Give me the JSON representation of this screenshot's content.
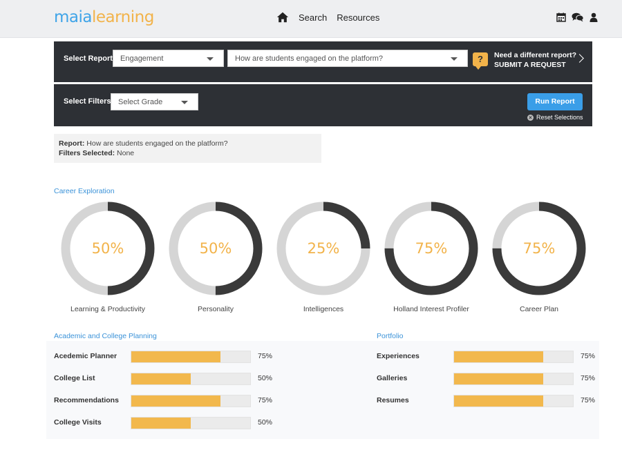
{
  "app": {
    "logo_part1": "maia",
    "logo_part2": "learning",
    "nav": [
      "Search",
      "Resources"
    ],
    "accent_color": "#3a9ee8",
    "highlight_color": "#f2b34a"
  },
  "report_bar": {
    "select_report_label": "Select Report:",
    "report_type": "Engagement",
    "report_question": "How are students engaged on the platform?",
    "request_line1": "Need a different report?",
    "request_line2": "SUBMIT A REQUEST",
    "request_icon": "?"
  },
  "filter_bar": {
    "select_filters_label": "Select Filters:",
    "grade_placeholder": "Select Grade",
    "run_button": "Run Report",
    "reset_label": "Reset Selections"
  },
  "summary": {
    "report_label": "Report:",
    "report_value": "How are students engaged on the platform?",
    "filters_label": "Filters Selected:",
    "filters_value": "None"
  },
  "career": {
    "title": "Career Exploration",
    "items": [
      {
        "label": "Learning & Productivity",
        "pct_text": "50%",
        "value": 0.5
      },
      {
        "label": "Personality",
        "pct_text": "50%",
        "value": 0.5
      },
      {
        "label": "Intelligences",
        "pct_text": "25%",
        "value": 0.25
      },
      {
        "label": "Holland Interest Profiler",
        "pct_text": "75%",
        "value": 0.75
      },
      {
        "label": "Career Plan",
        "pct_text": "75%",
        "value": 0.75
      }
    ]
  },
  "academic": {
    "title": "Academic and College Planning",
    "items": [
      {
        "label": "Acedemic Planner",
        "pct_text": "75%",
        "value": 0.75
      },
      {
        "label": "College List",
        "pct_text": "50%",
        "value": 0.5
      },
      {
        "label": "Recommendations",
        "pct_text": "75%",
        "value": 0.75
      },
      {
        "label": "College Visits",
        "pct_text": "50%",
        "value": 0.5
      }
    ]
  },
  "portfolio": {
    "title": "Portfolio",
    "items": [
      {
        "label": "Experiences",
        "pct_text": "75%",
        "value": 0.75
      },
      {
        "label": "Galleries",
        "pct_text": "75%",
        "value": 0.75
      },
      {
        "label": "Resumes",
        "pct_text": "75%",
        "value": 0.75
      }
    ]
  }
}
